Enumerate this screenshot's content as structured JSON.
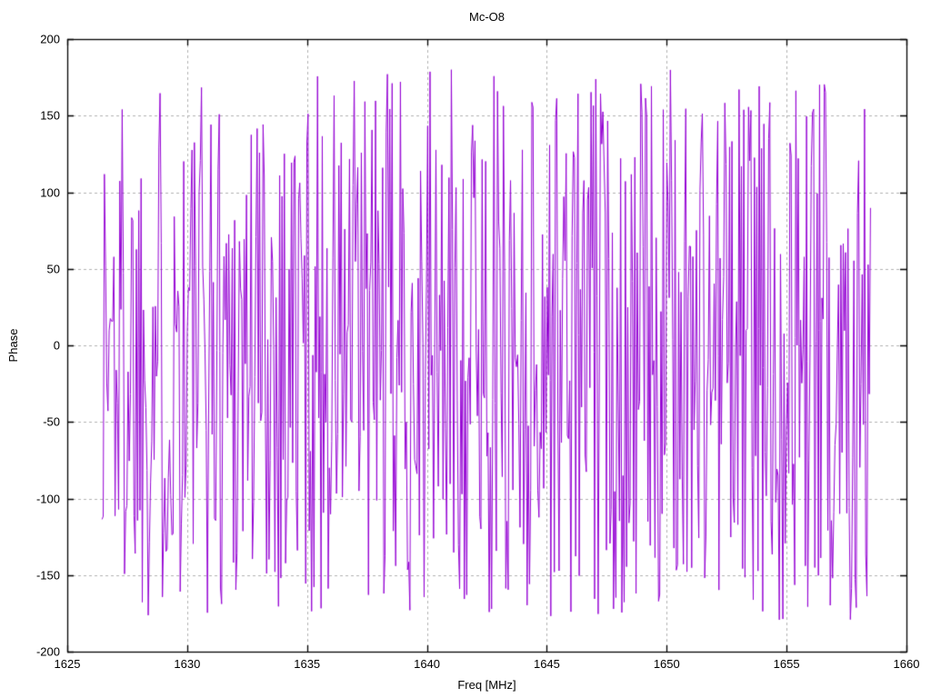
{
  "window": {
    "background": "#ffffff"
  },
  "chart_data": {
    "type": "line",
    "title": "Mc-O8",
    "xlabel": "Freq [MHz]",
    "ylabel": "Phase",
    "xlim": [
      1625,
      1660
    ],
    "ylim": [
      -200,
      200
    ],
    "xticks": [
      1625,
      1630,
      1635,
      1640,
      1645,
      1650,
      1655,
      1660
    ],
    "yticks": [
      -200,
      -150,
      -100,
      -50,
      0,
      50,
      100,
      150,
      200
    ],
    "grid": "dashed, at every major tick, both axes",
    "legend": "none",
    "colors": {
      "line": "#9400d3",
      "grid": "#b0b0b0",
      "border": "#000000",
      "text": "#000000"
    },
    "series": [
      {
        "name": "phase",
        "description": "Wrapped interferometric phase vs frequency; values jump pseudo-randomly across the full wrap range, drawn as a connected line so it appears as dense vertical strokes",
        "x_start": 1626.45,
        "x_end": 1658.5,
        "n_points": 650,
        "y_min": -180,
        "y_max": 180,
        "seed": 1337
      }
    ]
  }
}
